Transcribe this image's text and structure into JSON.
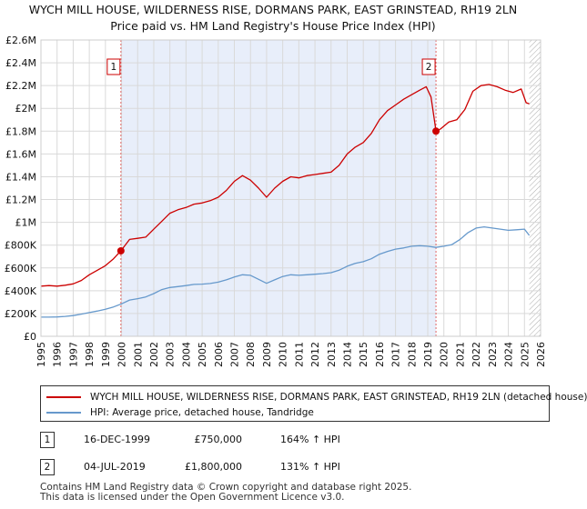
{
  "titles": {
    "line1": "WYCH MILL HOUSE, WILDERNESS RISE, DORMANS PARK, EAST GRINSTEAD, RH19 2LN",
    "line2": "Price paid vs. HM Land Registry's House Price Index (HPI)"
  },
  "colors": {
    "property": "#cc0000",
    "hpi": "#6699cc",
    "marker_line": "#e06666",
    "shade": "#e8eefa",
    "hatch": "#aaaaaa",
    "grid": "#d9d9d9"
  },
  "chart_data": {
    "type": "line",
    "x_range": [
      1995,
      2026
    ],
    "ylim": [
      0,
      2600000
    ],
    "grid": true,
    "yticks": [
      {
        "value": 0,
        "label": "£0"
      },
      {
        "value": 200000,
        "label": "£200K"
      },
      {
        "value": 400000,
        "label": "£400K"
      },
      {
        "value": 600000,
        "label": "£600K"
      },
      {
        "value": 800000,
        "label": "£800K"
      },
      {
        "value": 1000000,
        "label": "£1M"
      },
      {
        "value": 1200000,
        "label": "£1.2M"
      },
      {
        "value": 1400000,
        "label": "£1.4M"
      },
      {
        "value": 1600000,
        "label": "£1.6M"
      },
      {
        "value": 1800000,
        "label": "£1.8M"
      },
      {
        "value": 2000000,
        "label": "£2M"
      },
      {
        "value": 2200000,
        "label": "£2.2M"
      },
      {
        "value": 2400000,
        "label": "£2.4M"
      },
      {
        "value": 2600000,
        "label": "£2.6M"
      }
    ],
    "xticks": [
      "1995",
      "1996",
      "1997",
      "1998",
      "1999",
      "2000",
      "2001",
      "2002",
      "2003",
      "2004",
      "2005",
      "2006",
      "2007",
      "2008",
      "2009",
      "2010",
      "2011",
      "2012",
      "2013",
      "2014",
      "2015",
      "2016",
      "2017",
      "2018",
      "2019",
      "2020",
      "2021",
      "2022",
      "2023",
      "2024",
      "2025",
      "2026"
    ],
    "shaded_between": [
      1999.96,
      2019.51
    ],
    "hatched_from": 2025.3,
    "series": [
      {
        "name": "WYCH MILL HOUSE, WILDERNESS RISE, DORMANS PARK, EAST GRINSTEAD, RH19 2LN (detached house)",
        "color": "#cc0000",
        "points": [
          [
            1995.0,
            440000
          ],
          [
            1995.5,
            445000
          ],
          [
            1996.0,
            440000
          ],
          [
            1996.5,
            448000
          ],
          [
            1997.0,
            460000
          ],
          [
            1997.5,
            490000
          ],
          [
            1998.0,
            540000
          ],
          [
            1998.5,
            580000
          ],
          [
            1999.0,
            620000
          ],
          [
            1999.5,
            680000
          ],
          [
            1999.96,
            750000
          ],
          [
            2000.5,
            850000
          ],
          [
            2001.0,
            860000
          ],
          [
            2001.5,
            870000
          ],
          [
            2002.0,
            940000
          ],
          [
            2002.5,
            1010000
          ],
          [
            2003.0,
            1080000
          ],
          [
            2003.5,
            1110000
          ],
          [
            2004.0,
            1130000
          ],
          [
            2004.5,
            1160000
          ],
          [
            2005.0,
            1170000
          ],
          [
            2005.5,
            1190000
          ],
          [
            2006.0,
            1220000
          ],
          [
            2006.5,
            1280000
          ],
          [
            2007.0,
            1360000
          ],
          [
            2007.5,
            1410000
          ],
          [
            2008.0,
            1370000
          ],
          [
            2008.5,
            1300000
          ],
          [
            2009.0,
            1220000
          ],
          [
            2009.5,
            1300000
          ],
          [
            2010.0,
            1360000
          ],
          [
            2010.5,
            1400000
          ],
          [
            2011.0,
            1390000
          ],
          [
            2011.5,
            1410000
          ],
          [
            2012.0,
            1420000
          ],
          [
            2012.5,
            1430000
          ],
          [
            2013.0,
            1440000
          ],
          [
            2013.5,
            1500000
          ],
          [
            2014.0,
            1600000
          ],
          [
            2014.5,
            1660000
          ],
          [
            2015.0,
            1700000
          ],
          [
            2015.5,
            1780000
          ],
          [
            2016.0,
            1900000
          ],
          [
            2016.5,
            1980000
          ],
          [
            2017.0,
            2030000
          ],
          [
            2017.5,
            2080000
          ],
          [
            2018.0,
            2120000
          ],
          [
            2018.5,
            2160000
          ],
          [
            2018.9,
            2190000
          ],
          [
            2019.2,
            2100000
          ],
          [
            2019.51,
            1800000
          ],
          [
            2019.8,
            1820000
          ],
          [
            2020.3,
            1880000
          ],
          [
            2020.8,
            1900000
          ],
          [
            2021.3,
            1990000
          ],
          [
            2021.8,
            2150000
          ],
          [
            2022.3,
            2200000
          ],
          [
            2022.8,
            2210000
          ],
          [
            2023.3,
            2190000
          ],
          [
            2023.8,
            2160000
          ],
          [
            2024.3,
            2140000
          ],
          [
            2024.8,
            2170000
          ],
          [
            2025.1,
            2050000
          ],
          [
            2025.3,
            2040000
          ]
        ]
      },
      {
        "name": "HPI: Average price, detached house, Tandridge",
        "color": "#6699cc",
        "points": [
          [
            1995.0,
            168000
          ],
          [
            1995.5,
            168000
          ],
          [
            1996.0,
            170000
          ],
          [
            1996.5,
            175000
          ],
          [
            1997.0,
            182000
          ],
          [
            1997.5,
            195000
          ],
          [
            1998.0,
            208000
          ],
          [
            1998.5,
            222000
          ],
          [
            1999.0,
            238000
          ],
          [
            1999.5,
            258000
          ],
          [
            2000.0,
            285000
          ],
          [
            2000.5,
            318000
          ],
          [
            2001.0,
            330000
          ],
          [
            2001.5,
            345000
          ],
          [
            2002.0,
            375000
          ],
          [
            2002.5,
            410000
          ],
          [
            2003.0,
            428000
          ],
          [
            2003.5,
            436000
          ],
          [
            2004.0,
            445000
          ],
          [
            2004.5,
            455000
          ],
          [
            2005.0,
            458000
          ],
          [
            2005.5,
            463000
          ],
          [
            2006.0,
            475000
          ],
          [
            2006.5,
            495000
          ],
          [
            2007.0,
            520000
          ],
          [
            2007.5,
            540000
          ],
          [
            2008.0,
            535000
          ],
          [
            2008.5,
            500000
          ],
          [
            2009.0,
            465000
          ],
          [
            2009.5,
            495000
          ],
          [
            2010.0,
            525000
          ],
          [
            2010.5,
            540000
          ],
          [
            2011.0,
            535000
          ],
          [
            2011.5,
            540000
          ],
          [
            2012.0,
            545000
          ],
          [
            2012.5,
            550000
          ],
          [
            2013.0,
            558000
          ],
          [
            2013.5,
            580000
          ],
          [
            2014.0,
            615000
          ],
          [
            2014.5,
            640000
          ],
          [
            2015.0,
            655000
          ],
          [
            2015.5,
            680000
          ],
          [
            2016.0,
            720000
          ],
          [
            2016.5,
            745000
          ],
          [
            2017.0,
            765000
          ],
          [
            2017.5,
            775000
          ],
          [
            2018.0,
            790000
          ],
          [
            2018.5,
            795000
          ],
          [
            2019.0,
            790000
          ],
          [
            2019.5,
            780000
          ],
          [
            2020.0,
            790000
          ],
          [
            2020.5,
            805000
          ],
          [
            2021.0,
            850000
          ],
          [
            2021.5,
            910000
          ],
          [
            2022.0,
            950000
          ],
          [
            2022.5,
            960000
          ],
          [
            2023.0,
            950000
          ],
          [
            2023.5,
            940000
          ],
          [
            2024.0,
            930000
          ],
          [
            2024.5,
            935000
          ],
          [
            2025.0,
            940000
          ],
          [
            2025.3,
            885000
          ]
        ]
      }
    ],
    "markers": [
      {
        "id": "1",
        "x": 1999.96,
        "y": 750000
      },
      {
        "id": "2",
        "x": 2019.51,
        "y": 1800000
      }
    ]
  },
  "legend": {
    "property_label": "WYCH MILL HOUSE, WILDERNESS RISE, DORMANS PARK, EAST GRINSTEAD, RH19 2LN (detached house)",
    "hpi_label": "HPI: Average price, detached house, Tandridge"
  },
  "transactions": [
    {
      "id": "1",
      "date": "16-DEC-1999",
      "price": "£750,000",
      "hpi": "164% ↑ HPI"
    },
    {
      "id": "2",
      "date": "04-JUL-2019",
      "price": "£1,800,000",
      "hpi": "131% ↑ HPI"
    }
  ],
  "footer": {
    "line1": "Contains HM Land Registry data © Crown copyright and database right 2025.",
    "line2": "This data is licensed under the Open Government Licence v3.0."
  }
}
